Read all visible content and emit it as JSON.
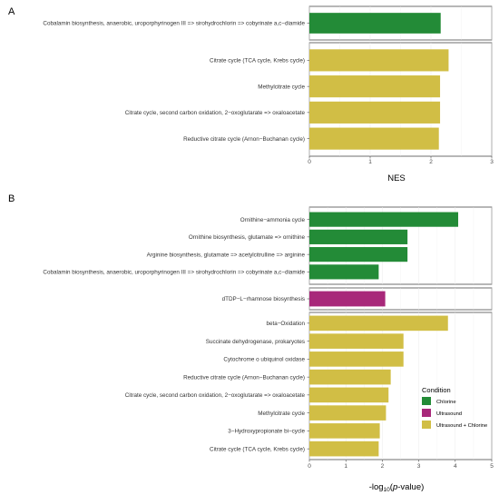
{
  "colors": {
    "Chlorine": "#238b37",
    "Ultrasound": "#a8287a",
    "Ultrasound + Chlorine": "#d1be45"
  },
  "legend": {
    "title": "Condition",
    "items": [
      "Chlorine",
      "Ultrasound",
      "Ultrasound + Chlorine"
    ],
    "placement": "inside-right of panel B"
  },
  "chart_data": [
    {
      "type": "bar",
      "orientation": "horizontal",
      "panel_label": "A",
      "xlabel": "NES",
      "xlim": [
        0,
        3
      ],
      "xticks": [
        "0",
        "1",
        "2",
        "3"
      ],
      "groups": [
        {
          "condition": "Chlorine",
          "bars": [
            {
              "label": "Cobalamin biosynthesis, anaerobic, uroporphyrinogen III => sirohydrochlorin => cobyrinate a,c-diamide",
              "value": 2.16
            }
          ]
        },
        {
          "condition": "Ultrasound + Chlorine",
          "bars": [
            {
              "label": "Citrate cycle (TCA cycle, Krebs cycle)",
              "value": 2.29
            },
            {
              "label": "Methylcitrate cycle",
              "value": 2.15
            },
            {
              "label": "Citrate cycle, second carbon oxidation, 2-oxoglutarate => oxaloacetate",
              "value": 2.15
            },
            {
              "label": "Reductive citrate cycle (Arnon-Buchanan cycle)",
              "value": 2.13
            }
          ]
        }
      ]
    },
    {
      "type": "bar",
      "orientation": "horizontal",
      "panel_label": "B",
      "xlabel": "-log10(p-value)",
      "xlim": [
        0,
        5
      ],
      "xticks": [
        "0",
        "1",
        "2",
        "3",
        "4",
        "5"
      ],
      "groups": [
        {
          "condition": "Chlorine",
          "bars": [
            {
              "label": "Ornithine-ammonia cycle",
              "value": 4.08
            },
            {
              "label": "Ornithine biosynthesis, glutamate => ornithine",
              "value": 2.69
            },
            {
              "label": "Arginine biosynthesis, glutamate => acetylcitrulline => arginine",
              "value": 2.69
            },
            {
              "label": "Cobalamin biosynthesis, anaerobic, uroporphyrinogen III => sirohydrochlorin => cobyrinate a,c-diamide",
              "value": 1.9
            }
          ]
        },
        {
          "condition": "Ultrasound",
          "bars": [
            {
              "label": "dTDP-L-rhamnose biosynthesis",
              "value": 2.08
            }
          ]
        },
        {
          "condition": "Ultrasound + Chlorine",
          "bars": [
            {
              "label": "beta-Oxidation",
              "value": 3.8
            },
            {
              "label": "Succinate dehydrogenase, prokaryotes",
              "value": 2.58
            },
            {
              "label": "Cytochrome o ubiquinol oxidase",
              "value": 2.58
            },
            {
              "label": "Reductive citrate cycle (Arnon-Buchanan cycle)",
              "value": 2.23
            },
            {
              "label": "Citrate cycle, second carbon oxidation, 2-oxoglutarate => oxaloacetate",
              "value": 2.17
            },
            {
              "label": "Methylcitrate cycle",
              "value": 2.1
            },
            {
              "label": "3-Hydroxypropionate bi-cycle",
              "value": 1.93
            },
            {
              "label": "Citrate cycle (TCA cycle, Krebs cycle)",
              "value": 1.9
            }
          ]
        }
      ]
    }
  ]
}
